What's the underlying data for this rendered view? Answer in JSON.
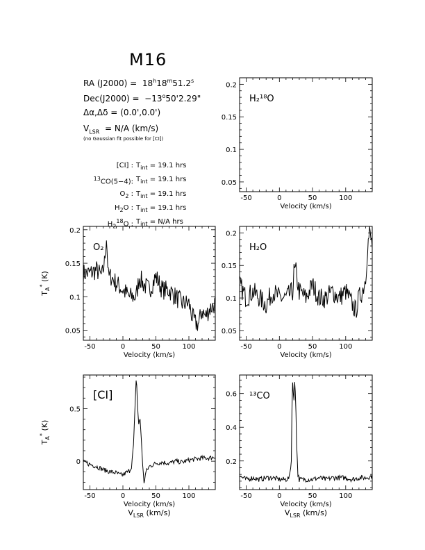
{
  "header": {
    "source": "M16",
    "ra_label": "RA (J2000) =",
    "ra_h": "18",
    "ra_m": "18",
    "ra_s": "51.2",
    "dec_label": "Dec(J2000) =",
    "dec_d": "−13",
    "dec_m": "50'",
    "dec_s": "2.29\"",
    "offset_label": "Δα,Δδ =",
    "offset_value": "(0.0',0.0')",
    "vlsr_label": "V",
    "vlsr_sub": "LSR",
    "vlsr_value": "= N/A  (km/s)",
    "fit_note": "(no Gaussian fit possible for [CI])",
    "integrations": [
      {
        "line": "[CI] :",
        "value": "19.1 hrs"
      },
      {
        "line": "CO(5−4):",
        "value": "19.1 hrs",
        "sup": "13"
      },
      {
        "line": "O",
        "sub": "2",
        "tail": " :",
        "value": "19.1 hrs"
      },
      {
        "line": "H",
        "sub": "2",
        "tail": "O :",
        "value": "19.1 hrs"
      },
      {
        "line": "H",
        "sub": "2",
        "sup": "18",
        "tail": "O :",
        "value": "N/A hrs"
      }
    ],
    "tint_label": "T",
    "tint_sub": "int",
    "equals": "="
  },
  "chart_data": [
    {
      "id": "h218o",
      "type": "line",
      "label": "H₂¹⁸O",
      "xlabel": "Velocity (km/s)",
      "ylabel": "",
      "xlim": [
        -60,
        140
      ],
      "ylim": [
        0.035,
        0.21
      ],
      "xticks": [
        -50,
        0,
        50,
        100
      ],
      "yticks": [
        0.05,
        0.1,
        0.15,
        0.2
      ],
      "ytick_labels": [
        "0.05",
        "0.1",
        "0.15",
        "0.2"
      ],
      "x": [],
      "values": []
    },
    {
      "id": "o2",
      "type": "line",
      "label": "O₂",
      "xlabel": "Velocity (km/s)",
      "ylabel": "T*A (K)",
      "xlim": [
        -60,
        140
      ],
      "ylim": [
        0.035,
        0.205
      ],
      "xticks": [
        -50,
        0,
        50,
        100
      ],
      "yticks": [
        0.05,
        0.1,
        0.15,
        0.2
      ],
      "ytick_labels": [
        "0.05",
        "0.1",
        "0.15",
        "0.2"
      ],
      "x": [
        -60,
        -50,
        -40,
        -32,
        -28,
        -25,
        -22,
        -18,
        -10,
        0,
        10,
        20,
        25,
        30,
        40,
        50,
        60,
        70,
        80,
        90,
        100,
        105,
        110,
        115,
        120,
        125,
        130,
        140
      ],
      "values": [
        0.135,
        0.135,
        0.14,
        0.13,
        0.15,
        0.19,
        0.13,
        0.13,
        0.12,
        0.11,
        0.1,
        0.1,
        0.13,
        0.12,
        0.11,
        0.13,
        0.11,
        0.11,
        0.1,
        0.09,
        0.09,
        0.07,
        0.06,
        0.06,
        0.08,
        0.07,
        0.08,
        0.09
      ]
    },
    {
      "id": "h2o",
      "type": "line",
      "label": "H₂O",
      "xlabel": "Velocity (km/s)",
      "ylabel": "",
      "xlim": [
        -60,
        140
      ],
      "ylim": [
        0.035,
        0.21
      ],
      "xticks": [
        -50,
        0,
        50,
        100
      ],
      "yticks": [
        0.05,
        0.1,
        0.15,
        0.2
      ],
      "ytick_labels": [
        "0.05",
        "0.1",
        "0.15",
        "0.2"
      ],
      "x": [
        -60,
        -50,
        -40,
        -30,
        -20,
        -10,
        0,
        10,
        20,
        22,
        25,
        28,
        30,
        40,
        50,
        60,
        70,
        80,
        90,
        100,
        110,
        115,
        120,
        125,
        130,
        133,
        136,
        140
      ],
      "values": [
        0.12,
        0.1,
        0.11,
        0.1,
        0.09,
        0.11,
        0.1,
        0.1,
        0.11,
        0.14,
        0.14,
        0.12,
        0.11,
        0.1,
        0.12,
        0.1,
        0.1,
        0.11,
        0.1,
        0.11,
        0.09,
        0.08,
        0.1,
        0.11,
        0.13,
        0.18,
        0.2,
        0.18
      ]
    },
    {
      "id": "ci",
      "type": "line",
      "label": "[CI]",
      "xlabel": "Velocity (km/s)",
      "ylabel": "T*A (K)",
      "xlabel2": "V_LSR (km/s)",
      "xlim": [
        -60,
        140
      ],
      "ylim": [
        -0.27,
        0.82
      ],
      "xticks": [
        -50,
        0,
        50,
        100
      ],
      "yticks": [
        0,
        0.5
      ],
      "ytick_labels": [
        "0",
        "0.5"
      ],
      "x": [
        -60,
        -50,
        -40,
        -30,
        -20,
        -10,
        -5,
        0,
        5,
        10,
        13,
        16,
        18,
        20,
        21,
        22,
        24,
        26,
        28,
        30,
        32,
        35,
        40,
        50,
        60,
        70,
        80,
        90,
        100,
        110,
        120,
        130,
        140
      ],
      "values": [
        -0.01,
        -0.03,
        -0.05,
        -0.08,
        -0.1,
        -0.11,
        -0.13,
        -0.13,
        -0.11,
        -0.09,
        -0.05,
        0.15,
        0.45,
        0.78,
        0.72,
        0.55,
        0.35,
        0.4,
        0.2,
        -0.05,
        -0.2,
        -0.1,
        -0.05,
        -0.02,
        -0.01,
        -0.02,
        0.0,
        -0.01,
        0.01,
        0.02,
        0.03,
        0.03,
        0.04
      ]
    },
    {
      "id": "13co",
      "type": "line",
      "label": "¹³CO",
      "xlabel": "Velocity (km/s)",
      "ylabel": "",
      "xlabel2": "V_LSR (km/s)",
      "xlim": [
        -60,
        140
      ],
      "ylim": [
        0.03,
        0.71
      ],
      "xticks": [
        -50,
        0,
        50,
        100
      ],
      "yticks": [
        0.2,
        0.4,
        0.6
      ],
      "ytick_labels": [
        "0.2",
        "0.4",
        "0.6"
      ],
      "x": [
        -60,
        -50,
        -40,
        -30,
        -20,
        -10,
        0,
        10,
        15,
        18,
        19,
        20,
        21,
        22,
        23,
        24,
        25,
        26,
        28,
        30,
        40,
        50,
        60,
        70,
        80,
        90,
        100,
        110,
        120,
        130,
        140
      ],
      "values": [
        0.11,
        0.09,
        0.1,
        0.09,
        0.1,
        0.1,
        0.09,
        0.09,
        0.1,
        0.2,
        0.5,
        0.68,
        0.6,
        0.55,
        0.67,
        0.62,
        0.5,
        0.3,
        0.12,
        0.09,
        0.09,
        0.09,
        0.1,
        0.09,
        0.1,
        0.1,
        0.1,
        0.09,
        0.1,
        0.1,
        0.11
      ]
    }
  ]
}
